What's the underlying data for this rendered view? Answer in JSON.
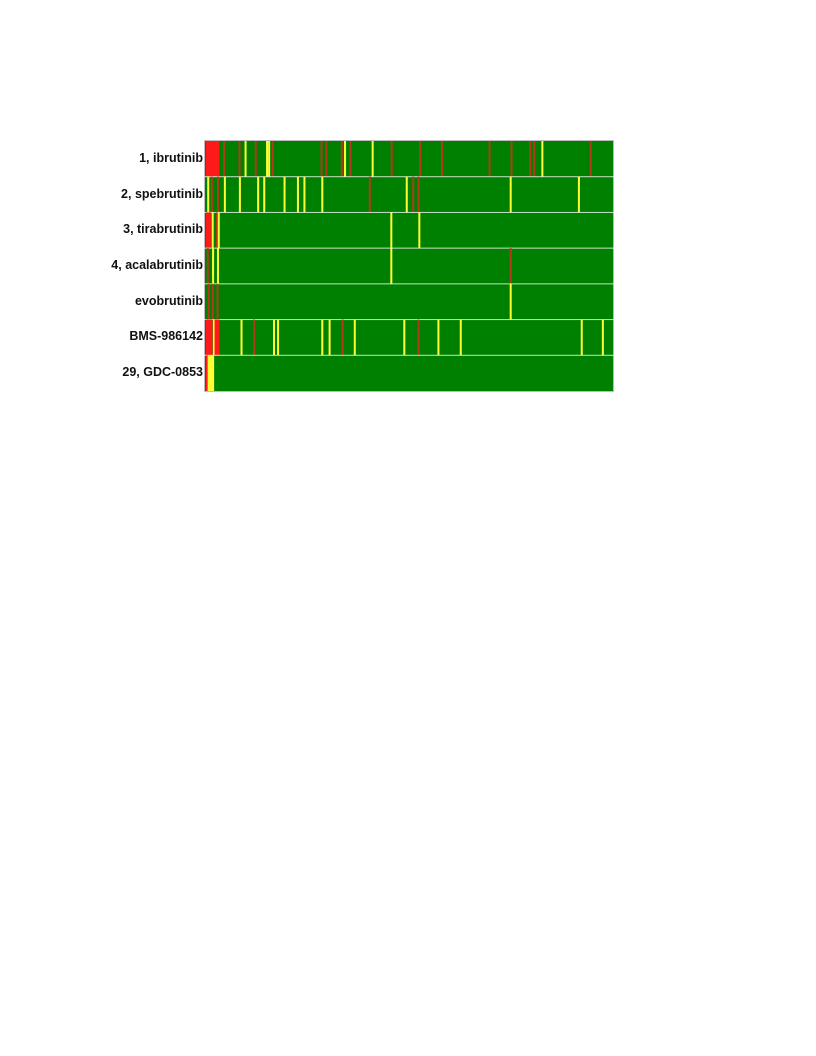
{
  "chart_data": {
    "type": "heatmap",
    "title": "",
    "xlabel": "",
    "ylabel": "",
    "x_domain": [
      0,
      100
    ],
    "colors": {
      "background": "#008000",
      "red": "#ff1a1a",
      "dark": "#b03a1a",
      "yellow": "#ffff33",
      "separator": "#e8f3e8"
    },
    "rows": [
      {
        "label": "1, ibrutinib",
        "marks": [
          {
            "x": 0.0,
            "w": 3.3,
            "c": "red"
          },
          {
            "x": 4.2,
            "c": "dark"
          },
          {
            "x": 8.0,
            "c": "dark"
          },
          {
            "x": 9.5,
            "c": "yellow"
          },
          {
            "x": 12.0,
            "c": "dark"
          },
          {
            "x": 14.8,
            "c": "yellow"
          },
          {
            "x": 15.3,
            "c": "yellow"
          },
          {
            "x": 16.2,
            "c": "dark"
          },
          {
            "x": 28.2,
            "c": "dark"
          },
          {
            "x": 29.4,
            "c": "dark"
          },
          {
            "x": 33.2,
            "c": "dark"
          },
          {
            "x": 34.0,
            "c": "yellow"
          },
          {
            "x": 35.3,
            "c": "dark"
          },
          {
            "x": 40.8,
            "c": "yellow"
          },
          {
            "x": 45.5,
            "c": "dark"
          },
          {
            "x": 52.5,
            "c": "dark"
          },
          {
            "x": 57.9,
            "c": "dark"
          },
          {
            "x": 69.6,
            "c": "dark"
          },
          {
            "x": 75.0,
            "c": "dark"
          },
          {
            "x": 79.6,
            "c": "dark"
          },
          {
            "x": 80.6,
            "c": "dark"
          },
          {
            "x": 82.6,
            "c": "yellow"
          },
          {
            "x": 94.5,
            "c": "dark"
          }
        ]
      },
      {
        "label": "2, spebrutinib",
        "marks": [
          {
            "x": 0.3,
            "c": "yellow"
          },
          {
            "x": 1.2,
            "c": "dark"
          },
          {
            "x": 2.7,
            "c": "dark"
          },
          {
            "x": 4.4,
            "c": "yellow"
          },
          {
            "x": 8.1,
            "c": "yellow"
          },
          {
            "x": 12.6,
            "c": "yellow"
          },
          {
            "x": 14.1,
            "c": "yellow"
          },
          {
            "x": 19.1,
            "c": "yellow"
          },
          {
            "x": 22.4,
            "c": "yellow"
          },
          {
            "x": 24.0,
            "c": "yellow"
          },
          {
            "x": 28.4,
            "c": "yellow"
          },
          {
            "x": 40.1,
            "c": "dark"
          },
          {
            "x": 49.2,
            "c": "yellow"
          },
          {
            "x": 50.8,
            "c": "dark"
          },
          {
            "x": 52.1,
            "c": "dark"
          },
          {
            "x": 74.8,
            "c": "yellow"
          },
          {
            "x": 91.6,
            "c": "yellow"
          }
        ]
      },
      {
        "label": "3, tirabrutinib",
        "marks": [
          {
            "x": 0.0,
            "w": 1.2,
            "c": "red"
          },
          {
            "x": 1.4,
            "c": "yellow"
          },
          {
            "x": 2.4,
            "c": "dark"
          },
          {
            "x": 2.9,
            "c": "yellow"
          },
          {
            "x": 45.4,
            "c": "yellow",
            "span": 2
          },
          {
            "x": 52.3,
            "c": "yellow"
          }
        ]
      },
      {
        "label": "4, acalabrutinib",
        "marks": [
          {
            "x": 0.2,
            "c": "dark"
          },
          {
            "x": 1.5,
            "c": "yellow"
          },
          {
            "x": 2.7,
            "c": "yellow"
          },
          {
            "x": 74.8,
            "c": "dark"
          }
        ]
      },
      {
        "label": "evobrutinib",
        "marks": [
          {
            "x": 0.4,
            "c": "dark"
          },
          {
            "x": 1.4,
            "c": "dark"
          },
          {
            "x": 2.6,
            "c": "dark"
          },
          {
            "x": 74.8,
            "c": "yellow"
          }
        ]
      },
      {
        "label": "BMS-986142",
        "marks": [
          {
            "x": 0.0,
            "w": 1.6,
            "c": "red"
          },
          {
            "x": 1.7,
            "c": "yellow"
          },
          {
            "x": 2.1,
            "w": 1.2,
            "c": "red"
          },
          {
            "x": 8.5,
            "c": "yellow"
          },
          {
            "x": 11.6,
            "c": "dark"
          },
          {
            "x": 16.5,
            "c": "yellow"
          },
          {
            "x": 17.5,
            "c": "yellow"
          },
          {
            "x": 28.4,
            "c": "yellow"
          },
          {
            "x": 30.2,
            "c": "yellow"
          },
          {
            "x": 33.4,
            "c": "dark"
          },
          {
            "x": 36.4,
            "c": "yellow"
          },
          {
            "x": 48.6,
            "c": "yellow"
          },
          {
            "x": 52.1,
            "c": "dark"
          },
          {
            "x": 57.0,
            "c": "yellow"
          },
          {
            "x": 62.5,
            "c": "yellow"
          },
          {
            "x": 92.3,
            "c": "yellow"
          },
          {
            "x": 97.5,
            "c": "yellow"
          }
        ]
      },
      {
        "label": "29, GDC-0853",
        "marks": [
          {
            "x": 0.0,
            "w": 0.4,
            "c": "red"
          },
          {
            "x": 0.4,
            "w": 1.6,
            "c": "yellow"
          }
        ]
      }
    ]
  }
}
